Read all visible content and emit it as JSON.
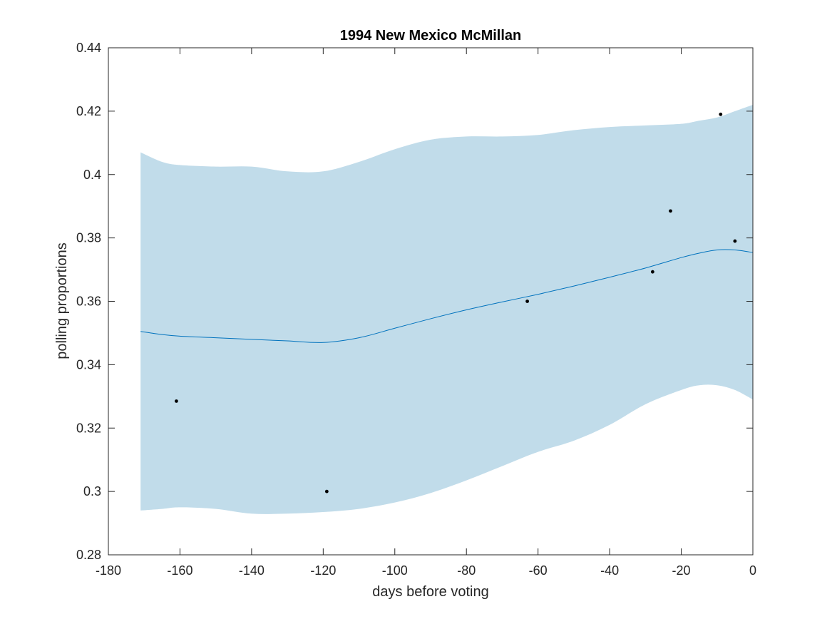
{
  "chart_data": {
    "type": "line",
    "title": "1994 New Mexico McMillan",
    "xlabel": "days before voting",
    "ylabel": "polling proportions",
    "xlim": [
      -180,
      0
    ],
    "ylim": [
      0.28,
      0.44
    ],
    "xticks": [
      -180,
      -160,
      -140,
      -120,
      -100,
      -80,
      -60,
      -40,
      -20,
      0
    ],
    "xtick_labels": [
      "-180",
      "-160",
      "-140",
      "-120",
      "-100",
      "-80",
      "-60",
      "-40",
      "-20",
      "0"
    ],
    "yticks": [
      0.28,
      0.3,
      0.32,
      0.34,
      0.36,
      0.38,
      0.4,
      0.42,
      0.44
    ],
    "ytick_labels": [
      "0.28",
      "0.3",
      "0.32",
      "0.34",
      "0.36",
      "0.38",
      "0.4",
      "0.42",
      "0.44"
    ],
    "grid": false,
    "colors": {
      "band": "#c1dcea",
      "line": "#0072bd",
      "points": "#000000",
      "axes": "#262626"
    },
    "band": {
      "x": [
        -171,
        -165,
        -160,
        -150,
        -140,
        -130,
        -120,
        -110,
        -100,
        -90,
        -80,
        -70,
        -60,
        -50,
        -40,
        -30,
        -20,
        -15,
        -10,
        -5,
        0
      ],
      "upper": [
        0.407,
        0.404,
        0.403,
        0.4025,
        0.4025,
        0.401,
        0.401,
        0.404,
        0.408,
        0.411,
        0.412,
        0.412,
        0.4125,
        0.414,
        0.415,
        0.4155,
        0.416,
        0.417,
        0.418,
        0.42,
        0.422
      ],
      "lower": [
        0.294,
        0.2945,
        0.295,
        0.2945,
        0.293,
        0.293,
        0.2935,
        0.2945,
        0.2965,
        0.2995,
        0.3035,
        0.308,
        0.3125,
        0.316,
        0.321,
        0.3275,
        0.332,
        0.3335,
        0.3335,
        0.332,
        0.329
      ]
    },
    "series": [
      {
        "type": "line",
        "x": [
          -171,
          -165,
          -160,
          -150,
          -140,
          -130,
          -120,
          -110,
          -100,
          -90,
          -80,
          -70,
          -60,
          -50,
          -40,
          -30,
          -20,
          -15,
          -10,
          -5,
          0
        ],
        "y": [
          0.3505,
          0.3495,
          0.349,
          0.3485,
          0.348,
          0.3475,
          0.347,
          0.3485,
          0.3515,
          0.3545,
          0.3573,
          0.3598,
          0.3622,
          0.3648,
          0.3676,
          0.3705,
          0.3738,
          0.3752,
          0.3762,
          0.3762,
          0.3754
        ]
      },
      {
        "type": "scatter",
        "x": [
          -161,
          -119,
          -63,
          -28,
          -23,
          -9,
          -5
        ],
        "y": [
          0.3285,
          0.3,
          0.36,
          0.3693,
          0.3885,
          0.419,
          0.379
        ]
      }
    ]
  }
}
